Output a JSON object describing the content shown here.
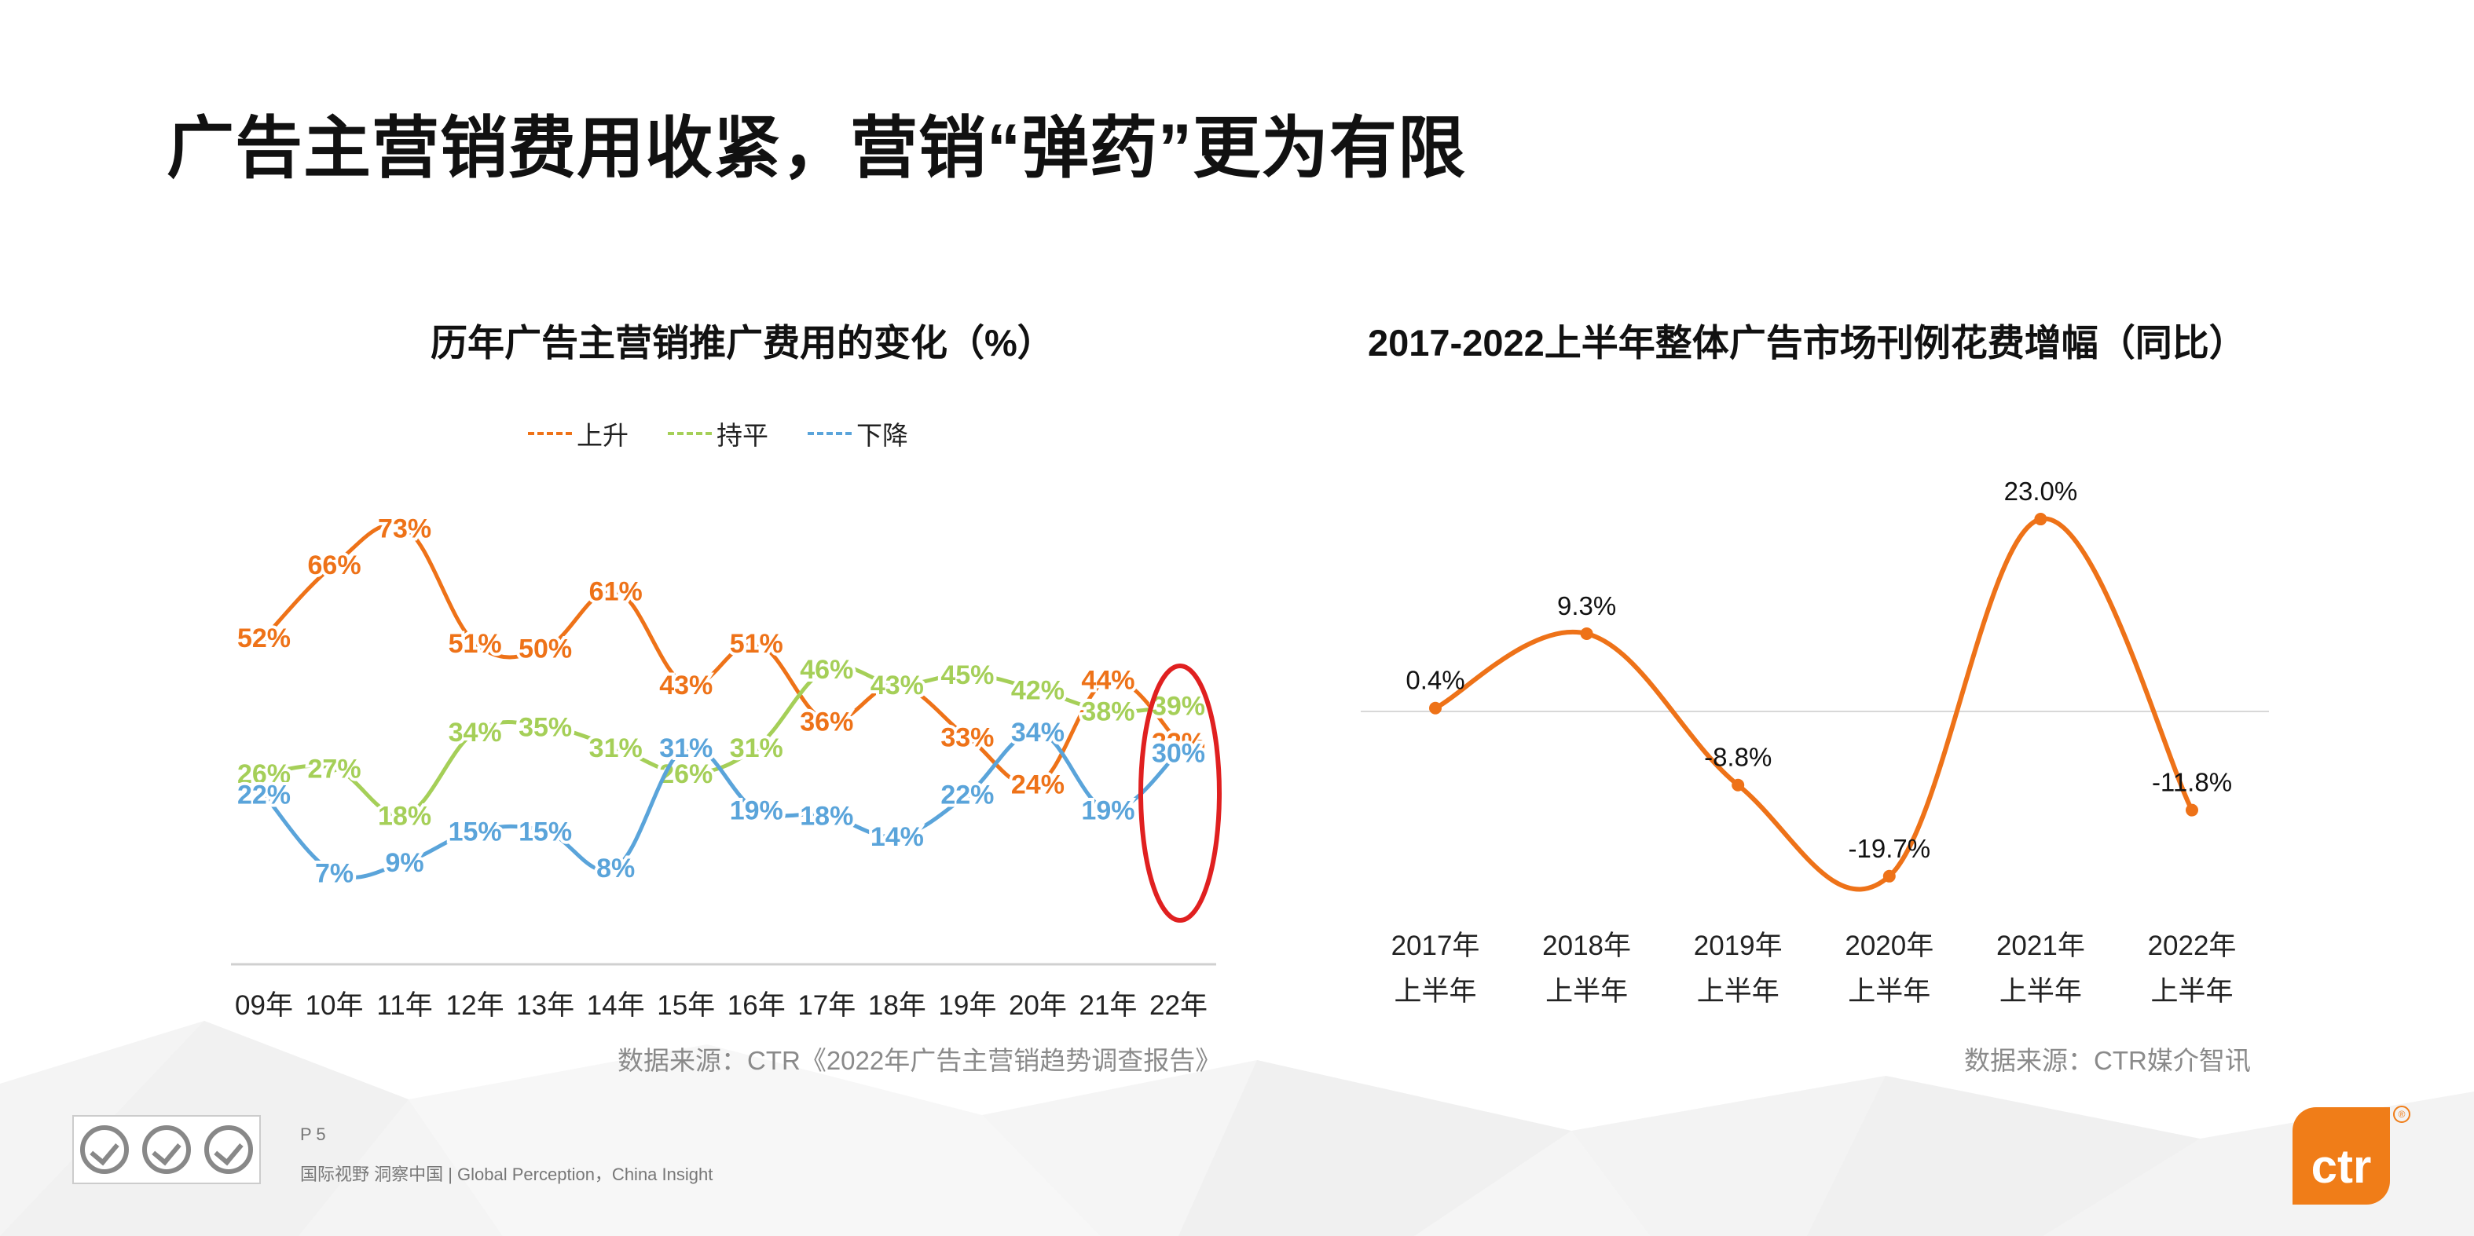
{
  "slide": {
    "title": "广告主营销费用收紧，营销“弹药”更为有限",
    "page": "P 5",
    "tagline": "国际视野 洞察中国 | Global Perception，China Insight",
    "logo_text": "ctr",
    "logo_mark": "®"
  },
  "colors": {
    "orange": "#ee7218",
    "green": "#a5cf58",
    "blue": "#5aa4da",
    "red": "#e02020",
    "gray_text": "#8a8a8a"
  },
  "chart_data": [
    {
      "type": "line",
      "title": "历年广告主营销推广费用的变化（%）",
      "categories": [
        "09年",
        "10年",
        "11年",
        "12年",
        "13年",
        "14年",
        "15年",
        "16年",
        "17年",
        "18年",
        "19年",
        "20年",
        "21年",
        "22年"
      ],
      "series": [
        {
          "name": "上升",
          "color": "#ee7218",
          "values": [
            52,
            66,
            73,
            51,
            50,
            61,
            43,
            51,
            36,
            43,
            33,
            24,
            44,
            32
          ],
          "labels": [
            "52%",
            "66%",
            "73%",
            "51%",
            "50%",
            "61%",
            "43%",
            "51%",
            "36%",
            "43%",
            "33%",
            "24%",
            "44%",
            "32%"
          ]
        },
        {
          "name": "持平",
          "color": "#a5cf58",
          "values": [
            26,
            27,
            18,
            34,
            35,
            31,
            26,
            31,
            46,
            43,
            45,
            42,
            38,
            39
          ],
          "labels": [
            "26%",
            "27%",
            "18%",
            "34%",
            "35%",
            "31%",
            "26%",
            "31%",
            "46%",
            "43%",
            "45%",
            "42%",
            "38%",
            "39%"
          ]
        },
        {
          "name": "下降",
          "color": "#5aa4da",
          "values": [
            22,
            7,
            9,
            15,
            15,
            8,
            31,
            19,
            18,
            14,
            22,
            34,
            19,
            30
          ],
          "labels": [
            "22%",
            "7%",
            "9%",
            "15%",
            "15%",
            "8%",
            "31%",
            "19%",
            "18%",
            "14%",
            "22%",
            "34%",
            "19%",
            "30%"
          ]
        }
      ],
      "legend_position": "top",
      "grid": false,
      "highlight": "22年",
      "source": "数据来源：CTR《2022年广告主营销趋势调查报告》"
    },
    {
      "type": "line",
      "title": "2017-2022上半年整体广告市场刊例花费增幅（同比）",
      "categories": [
        "2017年\n上半年",
        "2018年\n上半年",
        "2019年\n上半年",
        "2020年\n上半年",
        "2021年\n上半年",
        "2022年\n上半年"
      ],
      "category_lines": [
        [
          "2017年",
          "上半年"
        ],
        [
          "2018年",
          "上半年"
        ],
        [
          "2019年",
          "上半年"
        ],
        [
          "2020年",
          "上半年"
        ],
        [
          "2021年",
          "上半年"
        ],
        [
          "2022年",
          "上半年"
        ]
      ],
      "series": [
        {
          "name": "",
          "color": "#ee7218",
          "values": [
            0.4,
            9.3,
            -8.8,
            -19.7,
            23.0,
            -11.8
          ],
          "labels": [
            "0.4%",
            "9.3%",
            "-8.8%",
            "-19.7%",
            "23.0%",
            "-11.8%"
          ]
        }
      ],
      "grid": false,
      "source": "数据来源：CTR媒介智讯"
    }
  ]
}
